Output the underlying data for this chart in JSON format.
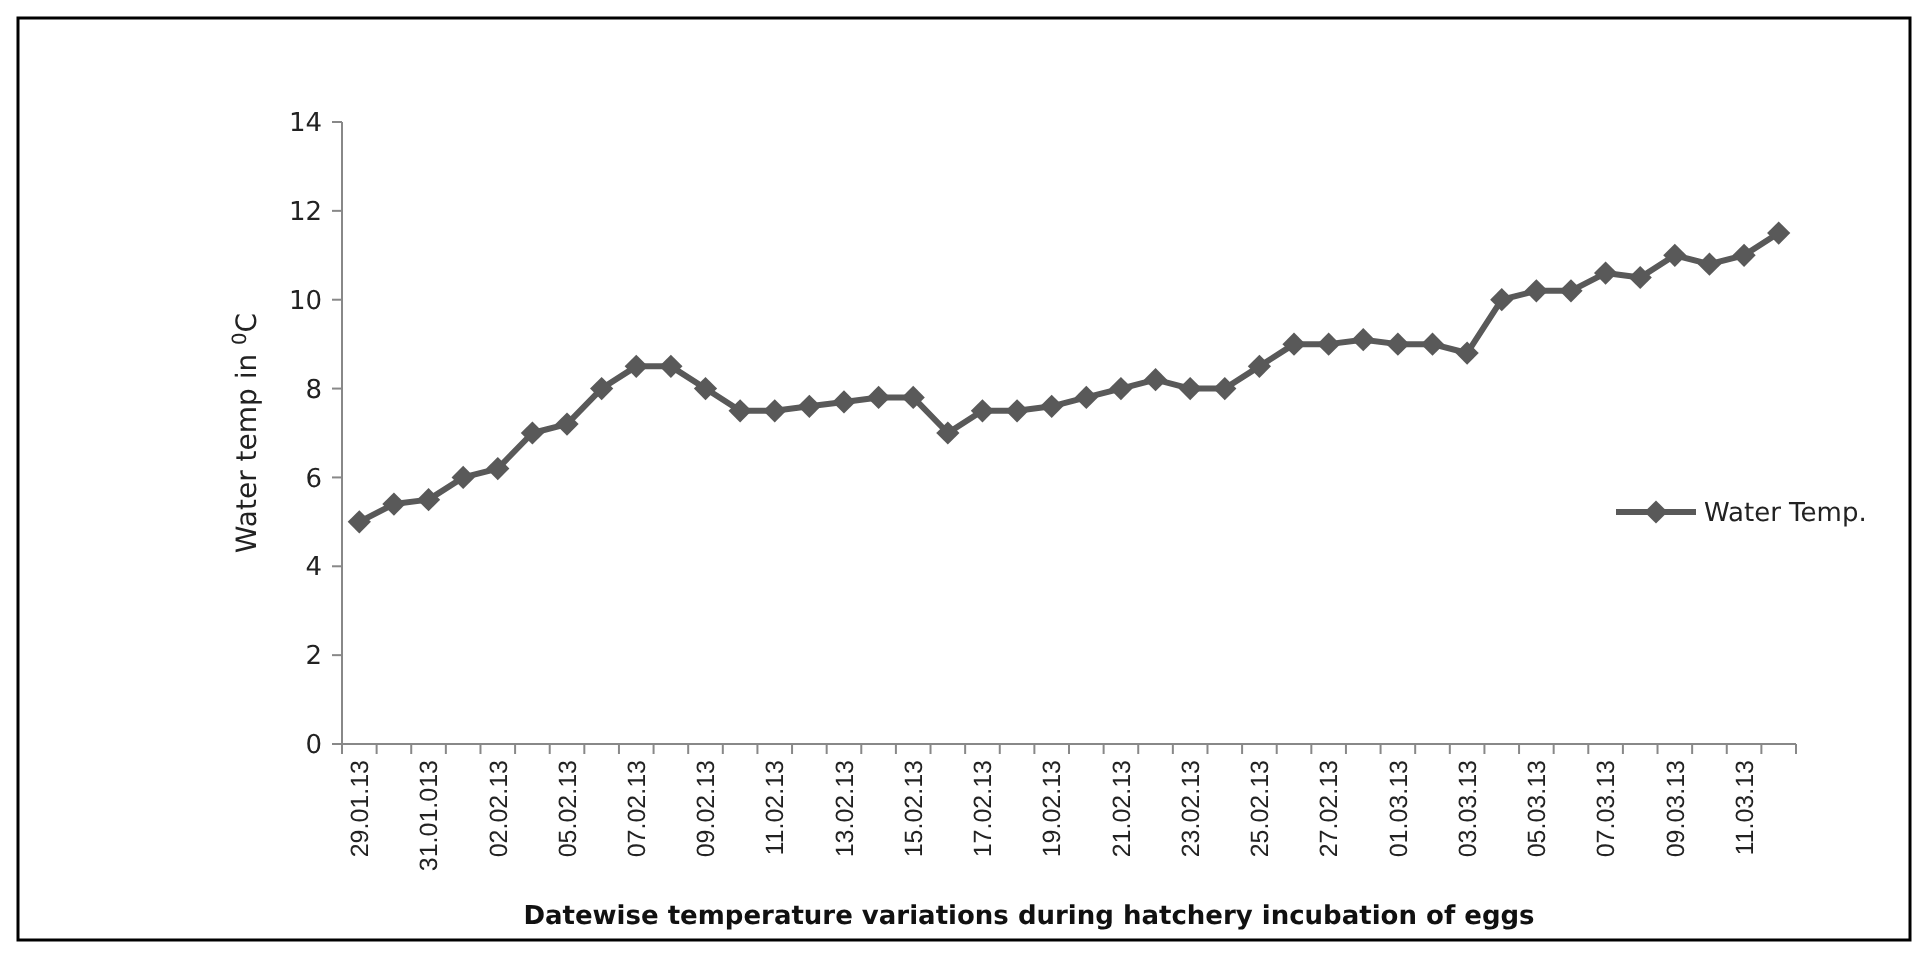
{
  "chart_data": {
    "type": "line",
    "xlabel": "Datewise temperature variations during hatchery incubation of eggs",
    "ylabel": "Water temp in $^{0}$C",
    "categories": [
      "29.01.13",
      null,
      "31.01.013",
      null,
      "02.02.13",
      null,
      "05.02.13",
      null,
      "07.02.13",
      null,
      "09.02.13",
      null,
      "11.02.13",
      null,
      "13.02.13",
      null,
      "15.02.13",
      null,
      "17.02.13",
      null,
      "19.02.13",
      null,
      "21.02.13",
      null,
      "23.02.13",
      null,
      "25.02.13",
      null,
      "27.02.13",
      null,
      "01.03.13",
      null,
      "03.03.13",
      null,
      "05.03.13",
      null,
      "07.03.13",
      null,
      "09.03.13",
      null,
      "11.03.13",
      null
    ],
    "series": [
      {
        "name": "Water Temp.",
        "color": "#595959",
        "values": [
          5,
          5.4,
          5.5,
          6,
          6.2,
          7,
          7.2,
          8,
          8.5,
          8.5,
          8,
          7.5,
          7.5,
          7.6,
          7.7,
          7.8,
          7.8,
          7,
          7.5,
          7.5,
          7.6,
          7.8,
          8,
          8.2,
          8,
          8,
          8.5,
          9,
          9,
          9.1,
          9,
          9,
          8.8,
          10,
          10.2,
          10.2,
          10.6,
          10.5,
          11,
          10.8,
          11,
          11.5
        ]
      }
    ],
    "ylim": [
      0,
      14
    ],
    "yticks": [
      0,
      2,
      4,
      6,
      8,
      10,
      12,
      14
    ],
    "grid": false,
    "legend": "right",
    "marker": "diamond",
    "line_style": "solid"
  }
}
